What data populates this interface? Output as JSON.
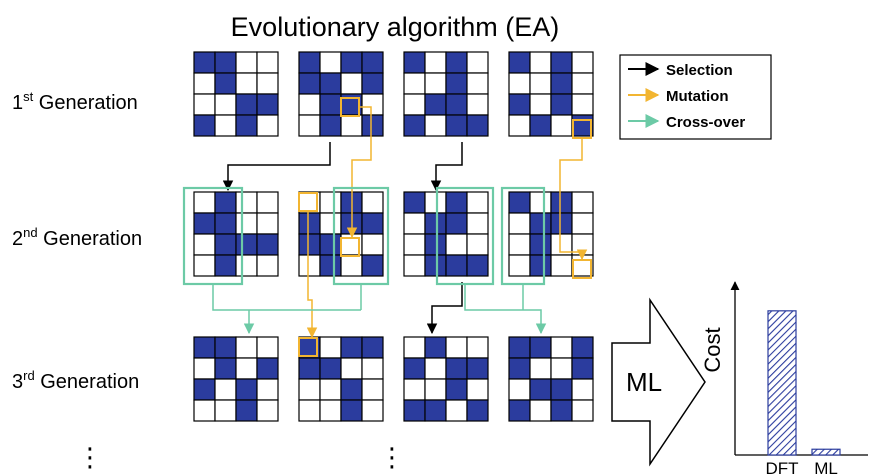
{
  "title": "Evolutionary algorithm (EA)",
  "legend": {
    "selection": "Selection",
    "mutation": "Mutation",
    "crossover": "Cross-over"
  },
  "generations": [
    {
      "num": "1",
      "sup": "st",
      "label": " Generation"
    },
    {
      "num": "2",
      "sup": "nd",
      "label": " Generation"
    },
    {
      "num": "3",
      "sup": "rd",
      "label": " Generation"
    }
  ],
  "ml_label": "ML",
  "ellipsis": "⋮",
  "colors": {
    "cell_fill": "#2b3c9e",
    "selection": "#000000",
    "mutation": "#f2b531",
    "crossover": "#6ccaa6"
  },
  "grids": [
    [
      [
        1,
        1,
        0,
        0
      ],
      [
        0,
        1,
        0,
        0
      ],
      [
        0,
        0,
        1,
        1
      ],
      [
        1,
        0,
        1,
        0
      ]
    ],
    [
      [
        1,
        0,
        1,
        1
      ],
      [
        1,
        1,
        0,
        1
      ],
      [
        0,
        1,
        1,
        0
      ],
      [
        0,
        1,
        0,
        1
      ]
    ],
    [
      [
        1,
        0,
        1,
        0
      ],
      [
        0,
        0,
        1,
        0
      ],
      [
        0,
        1,
        1,
        0
      ],
      [
        1,
        0,
        1,
        1
      ]
    ],
    [
      [
        1,
        0,
        1,
        0
      ],
      [
        0,
        0,
        1,
        0
      ],
      [
        1,
        0,
        1,
        0
      ],
      [
        0,
        1,
        0,
        1
      ]
    ],
    [
      [
        0,
        1,
        0,
        0
      ],
      [
        1,
        1,
        0,
        0
      ],
      [
        0,
        1,
        1,
        1
      ],
      [
        0,
        1,
        0,
        0
      ]
    ],
    [
      [
        0,
        0,
        1,
        0
      ],
      [
        1,
        0,
        1,
        1
      ],
      [
        1,
        1,
        0,
        0
      ],
      [
        0,
        1,
        0,
        1
      ]
    ],
    [
      [
        1,
        0,
        1,
        0
      ],
      [
        0,
        1,
        1,
        0
      ],
      [
        0,
        1,
        0,
        0
      ],
      [
        0,
        1,
        1,
        1
      ]
    ],
    [
      [
        1,
        0,
        1,
        0
      ],
      [
        0,
        1,
        1,
        0
      ],
      [
        0,
        1,
        0,
        0
      ],
      [
        0,
        1,
        0,
        0
      ]
    ],
    [
      [
        1,
        1,
        0,
        0
      ],
      [
        0,
        1,
        0,
        1
      ],
      [
        1,
        0,
        1,
        0
      ],
      [
        0,
        0,
        1,
        0
      ]
    ],
    [
      [
        1,
        0,
        1,
        1
      ],
      [
        1,
        1,
        0,
        0
      ],
      [
        0,
        0,
        1,
        0
      ],
      [
        0,
        0,
        1,
        0
      ]
    ],
    [
      [
        0,
        1,
        0,
        0
      ],
      [
        1,
        0,
        1,
        1
      ],
      [
        0,
        0,
        1,
        0
      ],
      [
        1,
        1,
        0,
        1
      ]
    ],
    [
      [
        1,
        1,
        0,
        1
      ],
      [
        1,
        0,
        0,
        1
      ],
      [
        0,
        1,
        1,
        0
      ],
      [
        1,
        0,
        1,
        0
      ]
    ]
  ],
  "chart_data": {
    "type": "bar",
    "categories": [
      "DFT",
      "ML"
    ],
    "values": [
      100,
      4
    ],
    "ylabel": "Cost",
    "ylim": [
      0,
      120
    ],
    "grid": false,
    "legend": "none"
  }
}
